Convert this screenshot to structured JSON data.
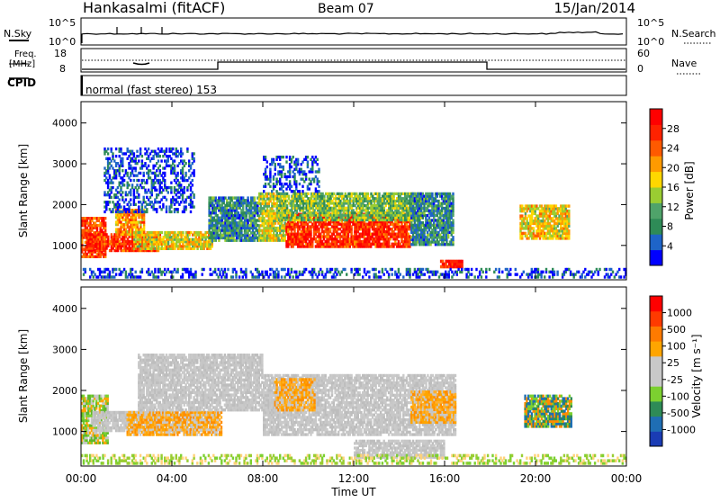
{
  "header": {
    "station": "Hankasalmi (fitACF)",
    "beam": "Beam 07",
    "date": "15/Jan/2014"
  },
  "noise_panel": {
    "left_label": "N.Sky",
    "right_label": "N.Search",
    "left_ticks": [
      "10^5",
      "10^0"
    ],
    "right_ticks": [
      "10^5",
      "10^0"
    ]
  },
  "freq_panel": {
    "left_label_line1": "Freq.",
    "left_label_line2": "[MHz]",
    "right_label": "Nave",
    "left_ticks": [
      "18",
      "8"
    ],
    "right_ticks": [
      "60",
      "0"
    ]
  },
  "cpid": {
    "label": "CPID",
    "program": "normal (fast stereo) 153"
  },
  "colors": {
    "power_scale": [
      "#0000ff",
      "#1e64c8",
      "#2e8b57",
      "#4fa36a",
      "#9acd32",
      "#ffd700",
      "#ff9a00",
      "#ff5a00",
      "#ff2200",
      "#ff0000"
    ],
    "velocity_scale": [
      "#1a3cb4",
      "#1f6eb4",
      "#2e8b57",
      "#7cd030",
      "#c8c8c8",
      "#c8c8c8",
      "#ffa500",
      "#ff7a00",
      "#ff3a00",
      "#ff0000"
    ],
    "ground_scatter": "#c0c0c0"
  },
  "chart_data": [
    {
      "type": "heatmap",
      "title": "Power",
      "xlabel": "Time UT",
      "ylabel": "Slant Range [km]",
      "x_ticks": [
        "00:00",
        "04:00",
        "08:00",
        "12:00",
        "16:00",
        "20:00",
        "00:00"
      ],
      "xlim_hours": [
        0,
        24
      ],
      "y_ticks": [
        "1000",
        "2000",
        "3000",
        "4000"
      ],
      "ylim_km": [
        180,
        4500
      ],
      "colorbar": {
        "label": "Power [dB]",
        "ticks": [
          "4",
          "8",
          "12",
          "16",
          "20",
          "24",
          "28"
        ],
        "range": [
          0,
          30
        ]
      },
      "regions": [
        {
          "t0": 0.0,
          "t1": 1.1,
          "r0": 700,
          "r1": 1700,
          "level": 0.8
        },
        {
          "t0": 0.3,
          "t1": 3.5,
          "r0": 850,
          "r1": 1300,
          "level": 0.85
        },
        {
          "t0": 1.5,
          "t1": 2.8,
          "r0": 1250,
          "r1": 1900,
          "level": 0.65
        },
        {
          "t0": 2.3,
          "t1": 5.8,
          "r0": 900,
          "r1": 1350,
          "level": 0.55
        },
        {
          "t0": 1.0,
          "t1": 5.0,
          "r0": 1800,
          "r1": 3400,
          "level": 0.12
        },
        {
          "t0": 5.6,
          "t1": 7.8,
          "r0": 1100,
          "r1": 2200,
          "level": 0.25
        },
        {
          "t0": 7.8,
          "t1": 9.0,
          "r0": 1100,
          "r1": 2300,
          "level": 0.5
        },
        {
          "t0": 9.0,
          "t1": 14.5,
          "r0": 950,
          "r1": 1800,
          "level": 0.85
        },
        {
          "t0": 8.6,
          "t1": 15.0,
          "r0": 1600,
          "r1": 2300,
          "level": 0.4
        },
        {
          "t0": 8.0,
          "t1": 10.5,
          "r0": 2300,
          "r1": 3200,
          "level": 0.12
        },
        {
          "t0": 14.5,
          "t1": 16.4,
          "r0": 1000,
          "r1": 2300,
          "level": 0.25
        },
        {
          "t0": 15.8,
          "t1": 16.8,
          "r0": 450,
          "r1": 650,
          "level": 0.9
        },
        {
          "t0": 19.3,
          "t1": 21.5,
          "r0": 1150,
          "r1": 2000,
          "level": 0.55
        },
        {
          "t0": 0.0,
          "t1": 24.0,
          "r0": 200,
          "r1": 450,
          "level": 0.1
        }
      ]
    },
    {
      "type": "heatmap",
      "title": "Velocity",
      "xlabel": "Time UT",
      "ylabel": "Slant Range [km]",
      "x_ticks": [
        "00:00",
        "04:00",
        "08:00",
        "12:00",
        "16:00",
        "20:00",
        "00:00"
      ],
      "xlim_hours": [
        0,
        24
      ],
      "y_ticks": [
        "1000",
        "2000",
        "3000",
        "4000"
      ],
      "ylim_km": [
        180,
        4500
      ],
      "colorbar": {
        "label": "Velocity [m s⁻¹]",
        "ticks": [
          "1000",
          "500",
          "100",
          "25",
          "-25",
          "-100",
          "-500",
          "-1000"
        ],
        "range": [
          -1000,
          1000
        ]
      },
      "regions": [
        {
          "t0": 0.0,
          "t1": 1.2,
          "r0": 700,
          "r1": 1900,
          "kind": "green"
        },
        {
          "t0": 0.5,
          "t1": 6.0,
          "r0": 1000,
          "r1": 1500,
          "kind": "ground"
        },
        {
          "t0": 2.0,
          "t1": 6.2,
          "r0": 900,
          "r1": 1500,
          "kind": "orange"
        },
        {
          "t0": 2.5,
          "t1": 8.0,
          "r0": 1500,
          "r1": 2900,
          "kind": "ground"
        },
        {
          "t0": 8.0,
          "t1": 16.5,
          "r0": 900,
          "r1": 2400,
          "kind": "ground"
        },
        {
          "t0": 8.5,
          "t1": 10.3,
          "r0": 1500,
          "r1": 2300,
          "kind": "orange"
        },
        {
          "t0": 14.5,
          "t1": 16.5,
          "r0": 1200,
          "r1": 2000,
          "kind": "orange"
        },
        {
          "t0": 12.0,
          "t1": 16.0,
          "r0": 350,
          "r1": 800,
          "kind": "ground"
        },
        {
          "t0": 19.5,
          "t1": 21.6,
          "r0": 1100,
          "r1": 1900,
          "kind": "blue"
        },
        {
          "t0": 0.0,
          "t1": 24.0,
          "r0": 200,
          "r1": 450,
          "kind": "greenlow"
        }
      ]
    }
  ]
}
